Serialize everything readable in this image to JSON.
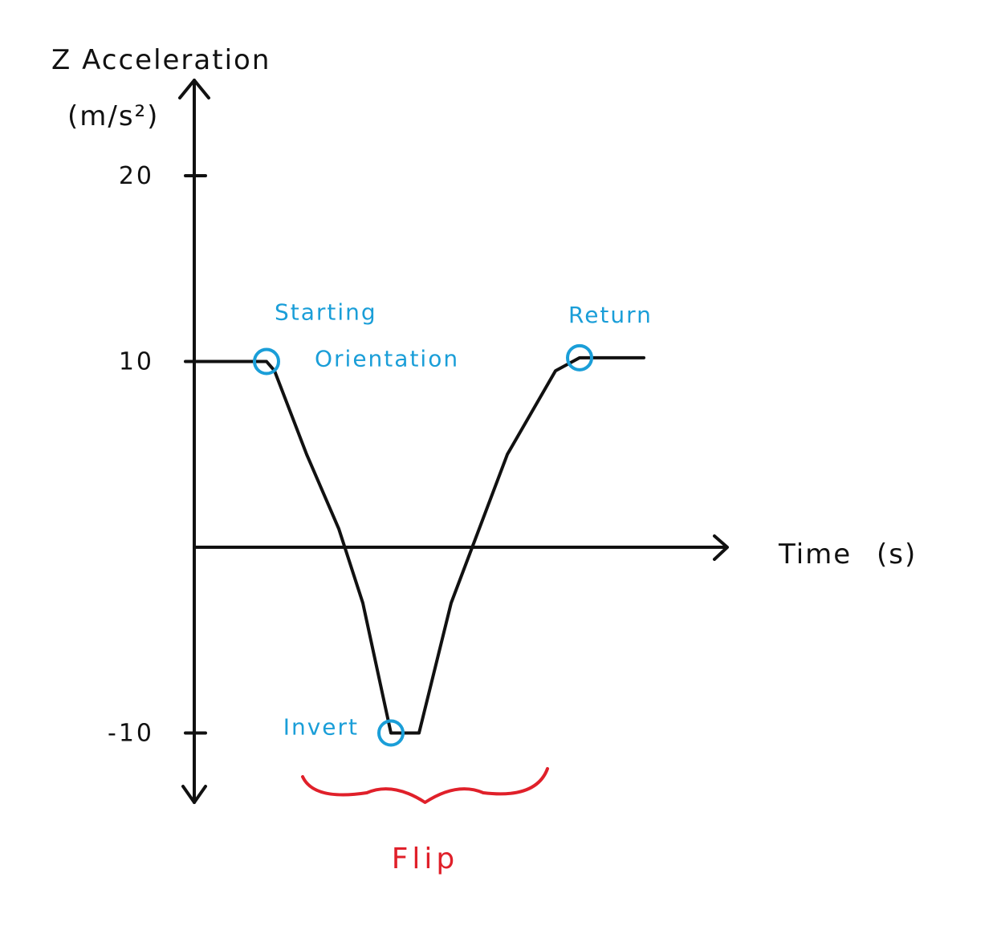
{
  "chart_data": {
    "type": "line",
    "title": "",
    "ylabel": "Z Acceleration",
    "ylabel_unit": "(m/s²)",
    "xlabel": "Time (s)",
    "ylim": [
      -13,
      25
    ],
    "y_ticks": [
      {
        "value": 20,
        "label": "20"
      },
      {
        "value": 10,
        "label": "10"
      },
      {
        "value": -10,
        "label": "-10"
      }
    ],
    "grid": false,
    "legend": "none",
    "series": [
      {
        "color": "#111111",
        "points": [
          [
            0,
            10
          ],
          [
            0.9,
            10
          ],
          [
            1.0,
            9.5
          ],
          [
            1.4,
            5
          ],
          [
            1.8,
            1
          ],
          [
            2.1,
            -3
          ],
          [
            2.45,
            -10
          ],
          [
            2.8,
            -10
          ],
          [
            3.2,
            -3
          ],
          [
            3.9,
            5
          ],
          [
            4.5,
            9.5
          ],
          [
            4.8,
            10.2
          ],
          [
            5.6,
            10.2
          ]
        ]
      }
    ],
    "annotations": [
      {
        "text_lines": [
          "Starting",
          "Orientation"
        ],
        "x": 0.9,
        "y": 10,
        "color": "#1a9ed8"
      },
      {
        "text_lines": [
          "Invert"
        ],
        "x": 2.45,
        "y": -10,
        "color": "#1a9ed8"
      },
      {
        "text_lines": [
          "Return"
        ],
        "x": 4.8,
        "y": 10.2,
        "color": "#1a9ed8"
      },
      {
        "text_lines": [
          "Flip"
        ],
        "x_range": [
          1.35,
          4.4
        ],
        "color": "#e0202a"
      }
    ]
  }
}
